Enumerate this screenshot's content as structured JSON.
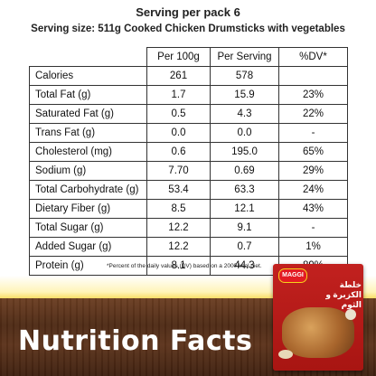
{
  "header": {
    "serving_per_pack": "Serving per pack 6",
    "serving_size": "Serving size: 511g Cooked Chicken Drumsticks with vegetables"
  },
  "table": {
    "columns": [
      "Per 100g",
      "Per Serving",
      "%DV*"
    ],
    "rows": [
      {
        "name": "Calories",
        "per100": "261",
        "perServing": "578",
        "dv": ""
      },
      {
        "name": "Total Fat (g)",
        "per100": "1.7",
        "perServing": "15.9",
        "dv": "23%"
      },
      {
        "name": "Saturated Fat (g)",
        "per100": "0.5",
        "perServing": "4.3",
        "dv": "22%"
      },
      {
        "name": "Trans Fat (g)",
        "per100": "0.0",
        "perServing": "0.0",
        "dv": "-"
      },
      {
        "name": "Cholesterol (mg)",
        "per100": "0.6",
        "perServing": "195.0",
        "dv": "65%"
      },
      {
        "name": "Sodium (g)",
        "per100": "7.70",
        "perServing": "0.69",
        "dv": "29%"
      },
      {
        "name": "Total Carbohydrate (g)",
        "per100": "53.4",
        "perServing": "63.3",
        "dv": "24%"
      },
      {
        "name": "Dietary Fiber (g)",
        "per100": "8.5",
        "perServing": "12.1",
        "dv": "43%"
      },
      {
        "name": "Total Sugar (g)",
        "per100": "12.2",
        "perServing": "9.1",
        "dv": "-"
      },
      {
        "name": "Added Sugar (g)",
        "per100": "12.2",
        "perServing": "0.7",
        "dv": "1%"
      },
      {
        "name": "Protein (g)",
        "per100": "8.1",
        "perServing": "44.3",
        "dv": "89%"
      }
    ]
  },
  "footnote": "*Percent of the daily values (DV) based on a 2000 kcal diet.",
  "title": "Nutrition Facts",
  "pack": {
    "brand": "MAGGI",
    "arabic": "خلطة الكزبرة و الثوم"
  },
  "colors": {
    "wood": "#4e2a15",
    "yellow": "#f4cf2e",
    "pack_red": "#c2211f"
  }
}
